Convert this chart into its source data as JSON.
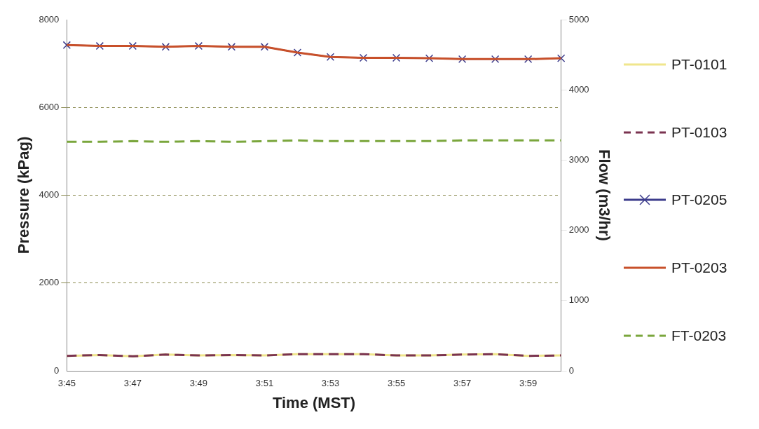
{
  "chart_data": {
    "type": "line",
    "xlabel": "Time (MST)",
    "ylabel": "Pressure (kPag)",
    "y2label": "Flow (m3/hr)",
    "categories": [
      "3:45",
      null,
      "3:47",
      null,
      "3:49",
      null,
      "3:51",
      null,
      "3:53",
      null,
      "3:55",
      null,
      "3:57",
      null,
      "3:59",
      null
    ],
    "series": [
      {
        "name": "PT-0101",
        "color": "#f0e68c",
        "line_style": "solid",
        "marker": "none",
        "values": [
          340,
          360,
          330,
          370,
          350,
          360,
          350,
          380,
          380,
          380,
          350,
          350,
          370,
          380,
          340,
          350
        ]
      },
      {
        "name": "PT-0103",
        "color": "#7a3350",
        "line_style": "dashed",
        "marker": "none",
        "values": [
          340,
          360,
          330,
          370,
          350,
          360,
          350,
          380,
          380,
          380,
          350,
          350,
          370,
          380,
          340,
          350
        ]
      },
      {
        "name": "PT-0205",
        "color": "#3c3c8c",
        "line_style": "solid",
        "marker": "cross",
        "values": [
          7420,
          7400,
          7400,
          7380,
          7400,
          7380,
          7380,
          7250,
          7150,
          7130,
          7130,
          7120,
          7100,
          7100,
          7100,
          7120
        ]
      },
      {
        "name": "PT-0203",
        "color": "#c8502a",
        "line_style": "solid",
        "marker": "none",
        "values": [
          7420,
          7400,
          7400,
          7380,
          7400,
          7380,
          7380,
          7250,
          7150,
          7130,
          7130,
          7120,
          7100,
          7100,
          7100,
          7120
        ]
      },
      {
        "name": "FT-0203",
        "color": "#7aa63c",
        "line_style": "dashed",
        "marker": "none",
        "axis": "y2",
        "values": [
          3260,
          3260,
          3270,
          3260,
          3270,
          3260,
          3270,
          3280,
          3270,
          3270,
          3270,
          3270,
          3280,
          3280,
          3280,
          3280
        ]
      }
    ],
    "ylim": [
      0,
      8000
    ],
    "yticks": [
      0,
      2000,
      4000,
      6000,
      8000
    ],
    "y2lim": [
      0,
      5000
    ],
    "y2ticks": [
      0,
      1000,
      2000,
      3000,
      4000,
      5000
    ],
    "grid": "y",
    "legend": "right"
  }
}
